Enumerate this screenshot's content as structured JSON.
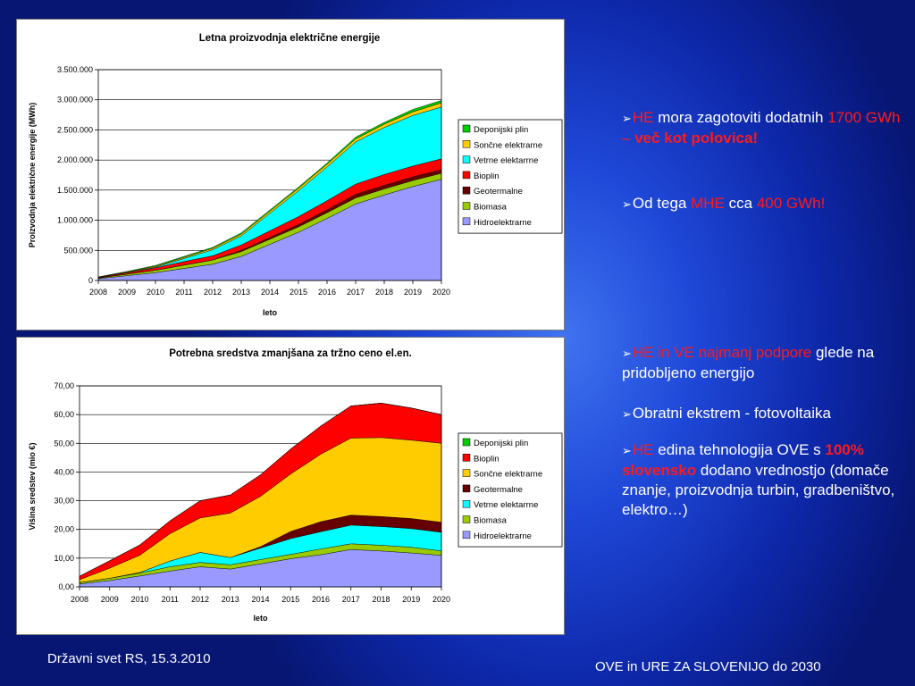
{
  "charts": {
    "chart1": {
      "title": "Letna proizvodnja električne energije",
      "ylabel": "Proizvodnja električne energije (MWh)",
      "xlabel": "leto",
      "ytick_labels": [
        "0",
        "500.000",
        "1.000.000",
        "1.500.000",
        "2.000.000",
        "2.500.000",
        "3.000.000",
        "3.500.000"
      ]
    },
    "chart2": {
      "title": "Potrebna sredstva zmanjšana za tržno ceno el.en.",
      "ylabel": "Višina sredstev (mio €)",
      "xlabel": "leto",
      "ytick_labels": [
        "0,00",
        "10,00",
        "20,00",
        "30,00",
        "40,00",
        "50,00",
        "60,00",
        "70,00"
      ]
    }
  },
  "chart_data": [
    {
      "type": "area",
      "stacked": true,
      "title": "Letna proizvodnja električne energije",
      "xlabel": "leto",
      "ylabel": "Proizvodnja električne energije (MWh)",
      "ylim": [
        0,
        3500000
      ],
      "grid": true,
      "legend_position": "right",
      "categories": [
        "2008",
        "2009",
        "2010",
        "2011",
        "2012",
        "2013",
        "2014",
        "2015",
        "2016",
        "2017",
        "2018",
        "2019",
        "2020"
      ],
      "series": [
        {
          "name": "Hidroelektrarne",
          "color": "#9999ff",
          "values": [
            30000,
            80000,
            130000,
            200000,
            270000,
            400000,
            600000,
            800000,
            1030000,
            1270000,
            1420000,
            1560000,
            1680000
          ]
        },
        {
          "name": "Biomasa",
          "color": "#99cc00",
          "values": [
            10000,
            25000,
            40000,
            55000,
            70000,
            80000,
            85000,
            90000,
            95000,
            100000,
            100000,
            100000,
            100000
          ]
        },
        {
          "name": "Geotermalne",
          "color": "#660000",
          "values": [
            0,
            0,
            0,
            0,
            0,
            20000,
            30000,
            40000,
            50000,
            60000,
            60000,
            60000,
            60000
          ]
        },
        {
          "name": "Bioplin",
          "color": "#ff0000",
          "values": [
            10000,
            20000,
            40000,
            60000,
            70000,
            90000,
            110000,
            130000,
            150000,
            170000,
            180000,
            180000,
            180000
          ]
        },
        {
          "name": "Vetrne elektarrne",
          "color": "#00ffff",
          "values": [
            0,
            5000,
            10000,
            50000,
            100000,
            150000,
            290000,
            430000,
            560000,
            700000,
            780000,
            840000,
            860000
          ]
        },
        {
          "name": "Sončne elektrarne",
          "color": "#ffcc00",
          "values": [
            5000,
            10000,
            15000,
            20000,
            25000,
            30000,
            35000,
            40000,
            45000,
            50000,
            55000,
            60000,
            70000
          ]
        },
        {
          "name": "Deponijski plin",
          "color": "#00cc00",
          "values": [
            5000,
            10000,
            15000,
            15000,
            15000,
            20000,
            20000,
            20000,
            20000,
            30000,
            30000,
            40000,
            40000
          ]
        }
      ]
    },
    {
      "type": "area",
      "stacked": true,
      "title": "Potrebna sredstva zmanjšana za tržno ceno el.en.",
      "xlabel": "leto",
      "ylabel": "Višina sredstev (mio €)",
      "ylim": [
        0,
        70
      ],
      "grid": true,
      "legend_position": "right",
      "categories": [
        "2008",
        "2009",
        "2010",
        "2011",
        "2012",
        "2013",
        "2014",
        "2015",
        "2016",
        "2017",
        "2018",
        "2019",
        "2020"
      ],
      "series": [
        {
          "name": "Hidroelektrarne",
          "color": "#9999ff",
          "values": [
            1.0,
            2.2,
            3.8,
            5.5,
            7.0,
            6.2,
            8.0,
            9.8,
            11.2,
            13.0,
            12.5,
            11.8,
            11.0
          ]
        },
        {
          "name": "Biomasa",
          "color": "#99cc00",
          "values": [
            0.5,
            0.8,
            1.0,
            1.5,
            1.5,
            1.5,
            1.5,
            1.5,
            2.0,
            2.0,
            2.0,
            2.0,
            1.5
          ]
        },
        {
          "name": "Vetrne elektarrne",
          "color": "#00ffff",
          "values": [
            0.0,
            0.0,
            0.2,
            2.0,
            3.5,
            2.5,
            4.0,
            5.5,
            6.0,
            6.5,
            6.5,
            6.5,
            6.5
          ]
        },
        {
          "name": "Geotermalne",
          "color": "#660000",
          "values": [
            0.0,
            0.0,
            0.0,
            0.0,
            0.0,
            0.0,
            0.5,
            2.5,
            3.5,
            3.5,
            3.5,
            3.5,
            3.5
          ]
        },
        {
          "name": "Sončne elektrarne",
          "color": "#ffcc00",
          "values": [
            1.0,
            3.5,
            6.0,
            9.5,
            12.0,
            15.5,
            17.5,
            20.0,
            23.5,
            26.8,
            27.5,
            27.3,
            27.5
          ]
        },
        {
          "name": "Bioplin",
          "color": "#ff0000",
          "values": [
            1.2,
            2.6,
            3.6,
            4.5,
            6.0,
            6.3,
            7.5,
            8.7,
            9.8,
            11.2,
            12.0,
            11.2,
            10.0
          ]
        },
        {
          "name": "Deponijski plin",
          "color": "#00cc00",
          "values": [
            0.0,
            0.0,
            0.0,
            0.0,
            0.0,
            0.0,
            0.0,
            0.0,
            0.0,
            0.0,
            0.0,
            0.0,
            0.0
          ]
        }
      ]
    }
  ],
  "right_text": {
    "b1": {
      "p1": "HE",
      "p2": " mora zagotoviti dodatnih ",
      "p3": "1700 GWh – ",
      "p4": "več kot polovica!"
    },
    "b2": {
      "p1": "Od tega ",
      "p2": "MHE",
      "p3": " cca ",
      "p4": "400 GWh!"
    },
    "b3": {
      "p1": "HE  in VE najmanj podpore",
      "p2": " glede na pridobljeno energijo"
    },
    "b4": {
      "p1": "Obratni ekstrem - fotovoltaika"
    },
    "b5": {
      "p1": "HE",
      "p2": " edina tehnologija OVE  s ",
      "p3": "100% slovensko",
      "p4": " dodano vrednostjo (domače znanje, proizvodnja turbin, gradbeništvo, elektro…)"
    }
  },
  "footer": {
    "left": "Državni svet RS, 15.3.2010",
    "right": "OVE in URE ZA SLOVENIJO do 2030"
  }
}
